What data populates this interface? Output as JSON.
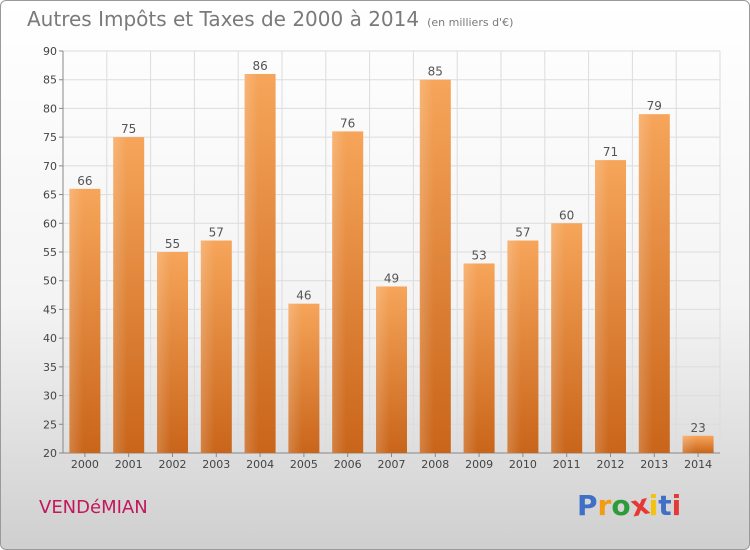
{
  "chart_data": {
    "type": "bar",
    "title": "Autres Impôts et Taxes de 2000 à 2014",
    "unit_label": "(en milliers d'€)",
    "categories": [
      "2000",
      "2001",
      "2002",
      "2003",
      "2004",
      "2005",
      "2006",
      "2007",
      "2008",
      "2009",
      "2010",
      "2011",
      "2012",
      "2013",
      "2014"
    ],
    "values": [
      66,
      75,
      55,
      57,
      86,
      46,
      76,
      49,
      85,
      53,
      57,
      60,
      71,
      79,
      23
    ],
    "ylim": [
      20,
      90
    ],
    "yticks": [
      20,
      25,
      30,
      35,
      40,
      45,
      50,
      55,
      60,
      65,
      70,
      75,
      80,
      85,
      90
    ],
    "grid": true,
    "bar_color": "#f0922f"
  },
  "place": "VENDéMIAN",
  "logo": {
    "letters": [
      "P",
      "r",
      "o",
      "x",
      "i",
      "t",
      "i"
    ],
    "colors": [
      "#3f6fc7",
      "#f39c12",
      "#2e9b3b",
      "#e53935",
      "#f4c20d",
      "#3f6fc7",
      "#e53935"
    ]
  }
}
